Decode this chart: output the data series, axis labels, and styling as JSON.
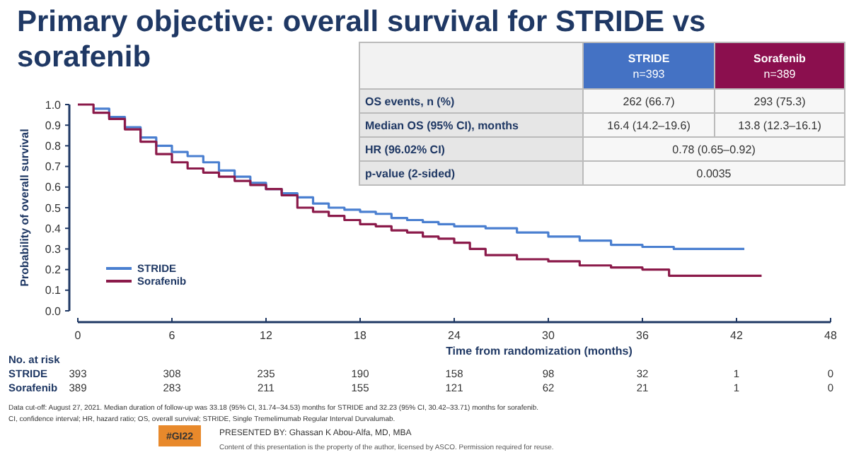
{
  "chart_data": [
    {
      "type": "step",
      "title": "Primary objective: overall survival for STRIDE vs sorafenib",
      "xlabel": "Time from randomization (months)",
      "ylabel": "Probability of overall survival",
      "xlim": [
        0,
        48
      ],
      "xticks": [
        0,
        6,
        12,
        18,
        24,
        30,
        36,
        42,
        48
      ],
      "ylim": [
        0,
        1
      ],
      "yticks": [
        {
          "value": 0,
          "label": "0.0"
        },
        {
          "value": 0.1,
          "label": "0.1"
        },
        {
          "value": 0.2,
          "label": "0.2"
        },
        {
          "value": 0.3,
          "label": "0.3"
        },
        {
          "value": 0.4,
          "label": "0.4"
        },
        {
          "value": 0.5,
          "label": "0.5"
        },
        {
          "value": 0.6,
          "label": "0.6"
        },
        {
          "value": 0.7,
          "label": "0.7"
        },
        {
          "value": 0.8,
          "label": "0.8"
        },
        {
          "value": 0.9,
          "label": "0.9"
        },
        {
          "value": 1,
          "label": "1.0"
        }
      ],
      "legend": "bottom left",
      "marker": "none",
      "series": [
        {
          "name": "STRIDE",
          "color": "#4a7fd0",
          "x": [
            1,
            2,
            3,
            4,
            5,
            6,
            7,
            8,
            9,
            10,
            11,
            12,
            13,
            14,
            15,
            16,
            17,
            18,
            19,
            20,
            21,
            22,
            23,
            24,
            26,
            28,
            30,
            32,
            34,
            36,
            38,
            40,
            42.5
          ],
          "values": [
            0.98,
            0.94,
            0.89,
            0.84,
            0.8,
            0.77,
            0.75,
            0.72,
            0.68,
            0.65,
            0.62,
            0.59,
            0.57,
            0.55,
            0.52,
            0.5,
            0.49,
            0.48,
            0.47,
            0.45,
            0.44,
            0.43,
            0.42,
            0.41,
            0.4,
            0.38,
            0.36,
            0.34,
            0.32,
            0.31,
            0.3,
            0.3,
            0.3
          ]
        },
        {
          "name": "Sorafenib",
          "color": "#8b1a4a",
          "x": [
            0,
            1,
            2,
            3,
            4,
            5,
            6,
            7,
            8,
            9,
            10,
            11,
            12,
            13,
            14,
            15,
            16,
            17,
            18,
            19,
            20,
            21,
            22,
            23,
            24,
            25,
            26,
            28,
            30,
            32,
            34,
            36,
            37.7,
            43.6
          ],
          "values": [
            1.0,
            0.96,
            0.93,
            0.88,
            0.82,
            0.76,
            0.72,
            0.69,
            0.67,
            0.65,
            0.63,
            0.61,
            0.59,
            0.56,
            0.5,
            0.48,
            0.46,
            0.44,
            0.42,
            0.41,
            0.39,
            0.38,
            0.36,
            0.35,
            0.33,
            0.3,
            0.27,
            0.25,
            0.24,
            0.22,
            0.21,
            0.2,
            0.17,
            0.17
          ]
        }
      ],
      "annotations": [
        "No. at risk",
        "393",
        "308",
        "235",
        "190",
        "158",
        "98",
        "32",
        "1",
        "0",
        "389",
        "283",
        "211",
        "155",
        "121",
        "62",
        "21",
        "1",
        "0",
        "Data cut-off: August 27, 2021. Median duration of follow-up was 33.18 (95% CI, 31.74–34.53) months for STRIDE and 32.23 (95% CI, 30.42–33.71) months for sorafenib.",
        "CI, confidence interval; HR, hazard ratio; OS, overall survival; STRIDE, Single Tremelimumab Regular Interval Durvalumab.",
        "#GI22",
        "PRESENTED BY: Ghassan K Abou-Alfa, MD, MBA",
        "Content of this presentation is the property of the author, licensed by ASCO. Permission required for reuse."
      ]
    },
    {
      "type": "other",
      "categories": [
        null,
        "STRIDE\nn=393",
        "Sorafenib\nn=389"
      ],
      "colors": [
        "#f2f2f2",
        "#4472c4",
        "#8b0f4e"
      ],
      "y_categories": [
        "OS events, n (%)",
        "Median OS (95% CI), months",
        "HR (96.02% CI)",
        "p-value (2-sided)"
      ],
      "cell_labels": [
        [
          "262 (66.7)",
          "293 (75.3)"
        ],
        [
          "16.4 (14.2–19.6)",
          "13.8 (12.3–16.1)"
        ],
        [
          "0.78 (0.65–0.92)",
          null
        ],
        [
          "0.0035",
          null
        ]
      ]
    }
  ]
}
